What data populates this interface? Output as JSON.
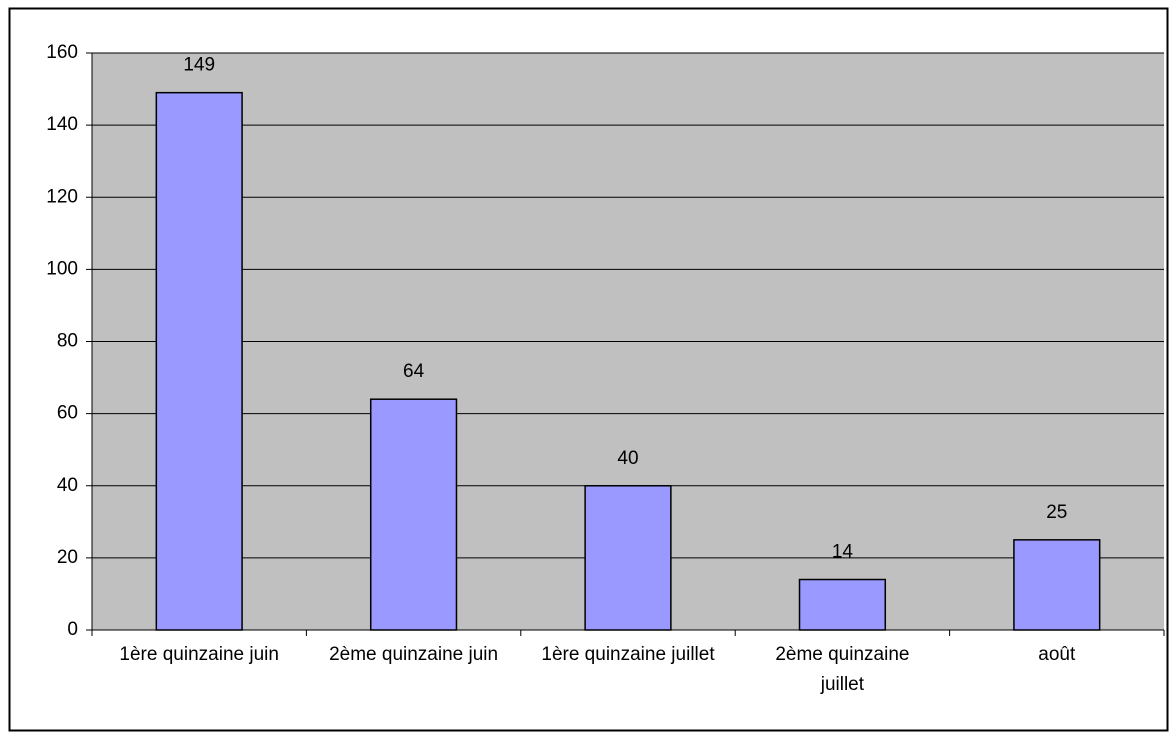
{
  "chart_data": {
    "type": "bar",
    "categories": [
      "1ère quinzaine juin",
      "2ème quinzaine juin",
      "1ère quinzaine juillet",
      "2ème quinzaine juillet",
      "août"
    ],
    "values": [
      149,
      64,
      40,
      14,
      25
    ],
    "color": "#9999ff",
    "ylim": [
      0,
      160
    ],
    "yticks": [
      0,
      20,
      40,
      60,
      80,
      100,
      120,
      140,
      160
    ],
    "grid": true
  }
}
